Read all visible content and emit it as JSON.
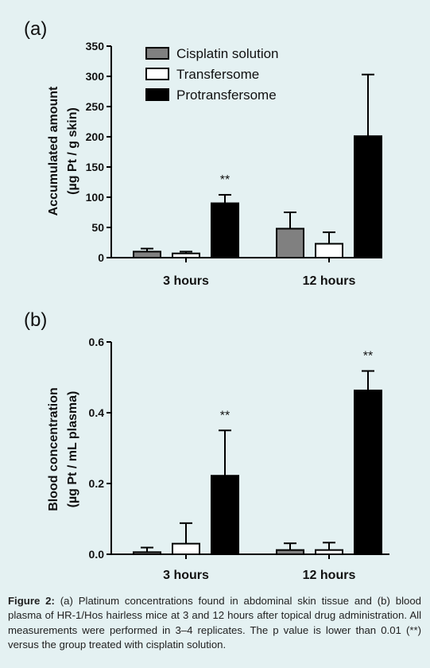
{
  "caption": {
    "prefix": "Figure 2:",
    "text": "(a) Platinum concentrations found in abdominal skin tissue and (b) blood plasma of HR-1/Hos hairless mice at 3 and 12 hours after topical drug administration. All measurements were performed in 3–4 replicates. The p value is lower than 0.01 (**) versus the group treated with cisplatin solution."
  },
  "colors": {
    "background": "#e4f1f2",
    "cisplatin": "#808080",
    "transfersome": "#ffffff",
    "protransfersome": "#000000"
  },
  "chart_data": [
    {
      "type": "bar",
      "panel_label": "(a)",
      "categories": [
        "3 hours",
        "12 hours"
      ],
      "ylabel_line1": "Accumulated amount",
      "ylabel_line2": "(µg Pt / g skin)",
      "ylim": [
        0,
        350
      ],
      "yticks": [
        0,
        50,
        100,
        150,
        200,
        250,
        300,
        350
      ],
      "legend_placement": "top-left",
      "legend": [
        "Cisplatin solution",
        "Transfersome",
        "Protransfersome"
      ],
      "series": [
        {
          "name": "Cisplatin solution",
          "values": [
            10,
            48
          ],
          "errors": [
            5,
            27
          ]
        },
        {
          "name": "Transfersome",
          "values": [
            7,
            23
          ],
          "errors": [
            3,
            19
          ]
        },
        {
          "name": "Protransfersome",
          "values": [
            90,
            201
          ],
          "errors": [
            14,
            102
          ]
        }
      ],
      "annotations": [
        {
          "category": "3 hours",
          "series": "Protransfersome",
          "text": "**"
        }
      ]
    },
    {
      "type": "bar",
      "panel_label": "(b)",
      "categories": [
        "3 hours",
        "12 hours"
      ],
      "ylabel_line1": "Blood concentration",
      "ylabel_line2": "(µg Pt / mL plasma)",
      "ylim": [
        0,
        0.6
      ],
      "yticks": [
        "0.0",
        "0.2",
        "0.4",
        "0.6"
      ],
      "series": [
        {
          "name": "Cisplatin solution",
          "values": [
            0.006,
            0.012
          ],
          "errors": [
            0.013,
            0.019
          ]
        },
        {
          "name": "Transfersome",
          "values": [
            0.03,
            0.012
          ],
          "errors": [
            0.058,
            0.021
          ]
        },
        {
          "name": "Protransfersome",
          "values": [
            0.222,
            0.463
          ],
          "errors": [
            0.128,
            0.055
          ]
        }
      ],
      "annotations": [
        {
          "category": "3 hours",
          "series": "Protransfersome",
          "text": "**"
        },
        {
          "category": "12 hours",
          "series": "Protransfersome",
          "text": "**"
        }
      ]
    }
  ]
}
